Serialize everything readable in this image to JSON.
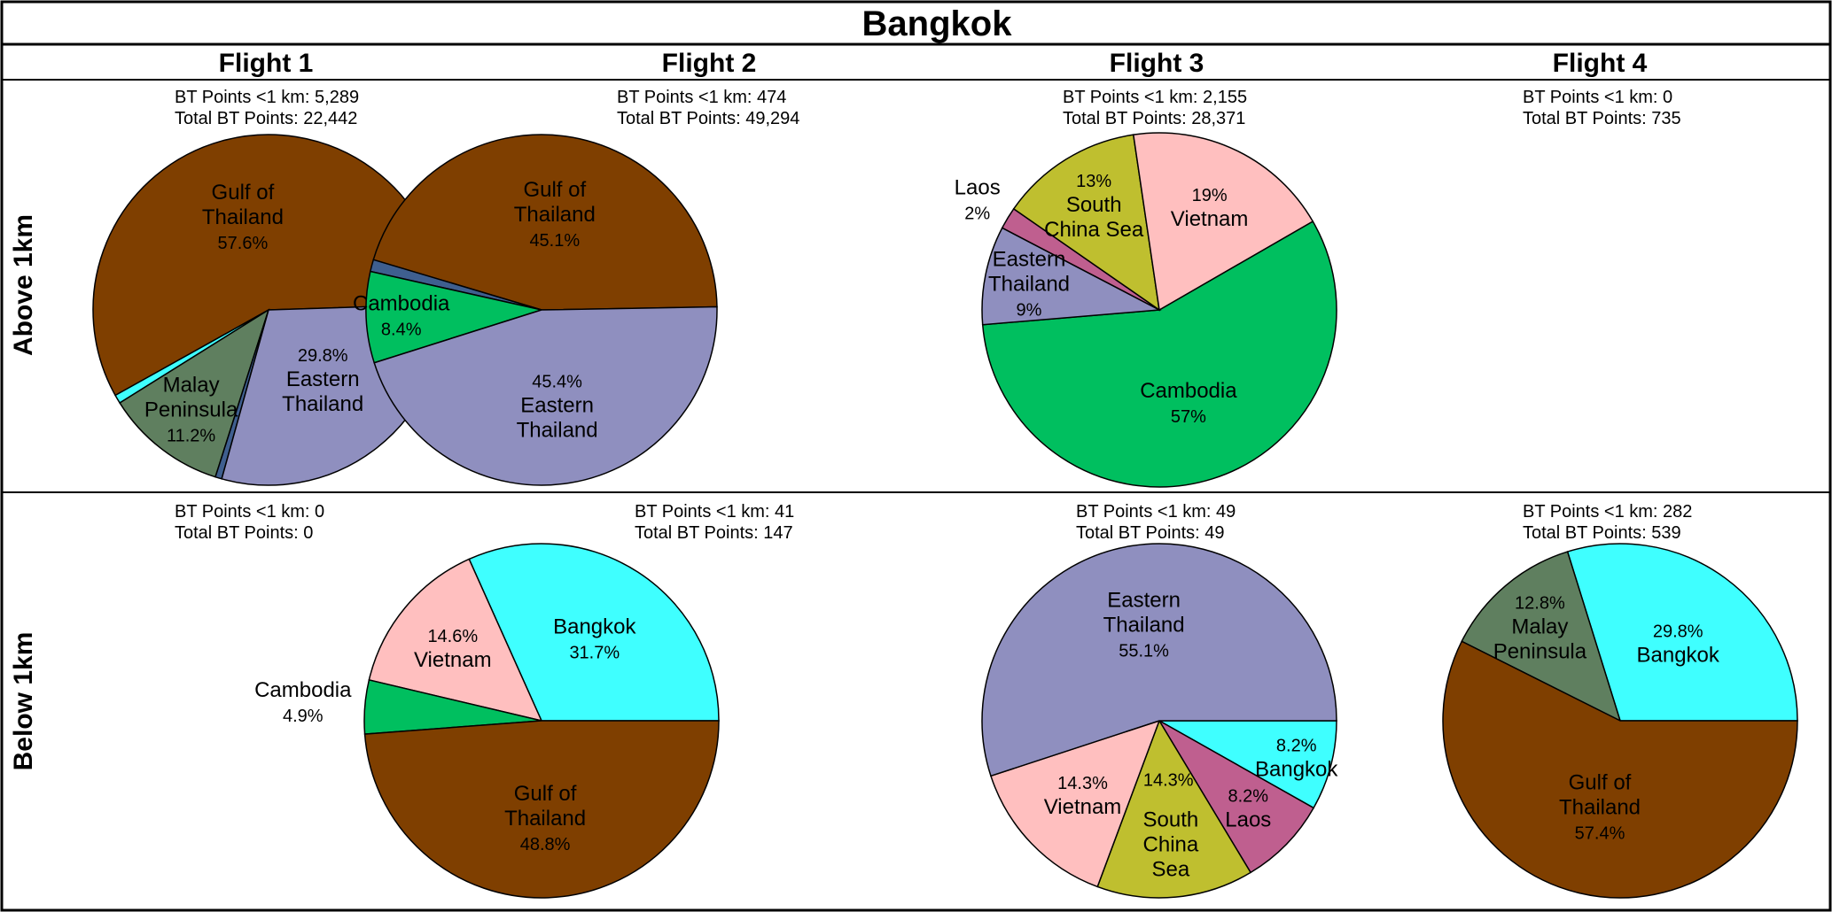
{
  "title": "Bangkok",
  "columns": [
    "Flight 1",
    "Flight 2",
    "Flight 3",
    "Flight 4"
  ],
  "rows": [
    "Above 1km",
    "Below 1km"
  ],
  "stat_labels": {
    "near": "BT Points <1 km: ",
    "total": "Total BT Points: "
  },
  "colors": {
    "Gulf of Thailand": "#7f3f00",
    "Eastern Thailand": "#8f8fbf",
    "Cambodia": "#00bf5f",
    "Vietnam": "#ffbfbf",
    "South China Sea": "#bfbf2f",
    "Laos": "#bf5f8f",
    "Bangkok": "#3fffff",
    "Malay Peninsula": "#5f7f5f",
    "Other": "#3f5f8f"
  },
  "chart_data": [
    {
      "type": "pie",
      "flight": "Flight 1",
      "altitude": "Above 1km",
      "near_points": "5,289",
      "total_points": "22,442",
      "slices": [
        {
          "name": "Gulf of Thailand",
          "label_lines": [
            "Gulf of",
            "Thailand"
          ],
          "value": 57.6,
          "pct": "57.6%"
        },
        {
          "name": "Bangkok",
          "label_lines": [],
          "value": 0.8,
          "pct": ""
        },
        {
          "name": "Malay Peninsula",
          "label_lines": [
            "Malay",
            "Peninsula"
          ],
          "value": 11.2,
          "pct": "11.2%"
        },
        {
          "name": "Other",
          "label_lines": [],
          "value": 0.6,
          "pct": ""
        },
        {
          "name": "Eastern Thailand",
          "label_lines": [
            "Eastern",
            "Thailand"
          ],
          "value": 29.8,
          "pct": "29.8%"
        }
      ]
    },
    {
      "type": "pie",
      "flight": "Flight 2",
      "altitude": "Above 1km",
      "near_points": "474",
      "total_points": "49,294",
      "slices": [
        {
          "name": "Gulf of Thailand",
          "label_lines": [
            "Gulf of",
            "Thailand"
          ],
          "value": 45.1,
          "pct": "45.1%"
        },
        {
          "name": "Other",
          "label_lines": [],
          "value": 1.1,
          "pct": ""
        },
        {
          "name": "Cambodia",
          "label_lines": [
            "Cambodia"
          ],
          "value": 8.4,
          "pct": "8.4%"
        },
        {
          "name": "Eastern Thailand",
          "label_lines": [
            "Eastern",
            "Thailand"
          ],
          "value": 45.4,
          "pct": "45.4%"
        }
      ]
    },
    {
      "type": "pie",
      "flight": "Flight 3",
      "altitude": "Above 1km",
      "near_points": "2,155",
      "total_points": "28,371",
      "slices": [
        {
          "name": "Cambodia",
          "label_lines": [
            "Cambodia"
          ],
          "value": 57,
          "pct": "57%"
        },
        {
          "name": "Eastern Thailand",
          "label_lines": [
            "Eastern",
            "Thailand"
          ],
          "value": 9,
          "pct": "9%"
        },
        {
          "name": "Laos",
          "label_lines": [
            "Laos"
          ],
          "value": 2,
          "pct": "2%"
        },
        {
          "name": "South China Sea",
          "label_lines": [
            "South",
            "China Sea"
          ],
          "value": 13,
          "pct": "13%"
        },
        {
          "name": "Vietnam",
          "label_lines": [
            "Vietnam"
          ],
          "value": 19,
          "pct": "19%"
        }
      ]
    },
    {
      "type": "pie",
      "flight": "Flight 4",
      "altitude": "Above 1km",
      "near_points": "0",
      "total_points": "735",
      "slices": []
    },
    {
      "type": "pie",
      "flight": "Flight 1",
      "altitude": "Below 1km",
      "near_points": "0",
      "total_points": "0",
      "slices": []
    },
    {
      "type": "pie",
      "flight": "Flight 2",
      "altitude": "Below 1km",
      "near_points": "41",
      "total_points": "147",
      "slices": [
        {
          "name": "Bangkok",
          "label_lines": [
            "Bangkok"
          ],
          "value": 31.7,
          "pct": "31.7%"
        },
        {
          "name": "Vietnam",
          "label_lines": [
            "Vietnam"
          ],
          "value": 14.6,
          "pct": "14.6%"
        },
        {
          "name": "Cambodia",
          "label_lines": [
            "Cambodia"
          ],
          "value": 4.9,
          "pct": "4.9%"
        },
        {
          "name": "Gulf of Thailand",
          "label_lines": [
            "Gulf of",
            "Thailand"
          ],
          "value": 48.8,
          "pct": "48.8%"
        }
      ]
    },
    {
      "type": "pie",
      "flight": "Flight 3",
      "altitude": "Below 1km",
      "near_points": "49",
      "total_points": "49",
      "slices": [
        {
          "name": "Bangkok",
          "label_lines": [
            "Bangkok"
          ],
          "value": 8.2,
          "pct": "8.2%"
        },
        {
          "name": "Laos",
          "label_lines": [
            "Laos"
          ],
          "value": 8.2,
          "pct": "8.2%"
        },
        {
          "name": "South China Sea",
          "label_lines": [
            "South",
            "China",
            "Sea"
          ],
          "value": 14.3,
          "pct": ""
        },
        {
          "name": "Vietnam",
          "label_lines": [
            "Vietnam"
          ],
          "value": 14.3,
          "pct": "14.3%"
        },
        {
          "name": "Eastern Thailand",
          "label_lines": [
            "Eastern",
            "Thailand"
          ],
          "value": 55.1,
          "pct": "55.1%"
        }
      ],
      "annotations": [
        "14.3%"
      ]
    },
    {
      "type": "pie",
      "flight": "Flight 4",
      "altitude": "Below 1km",
      "near_points": "282",
      "total_points": "539",
      "slices": [
        {
          "name": "Bangkok",
          "label_lines": [
            "Bangkok"
          ],
          "value": 29.8,
          "pct": "29.8%"
        },
        {
          "name": "Malay Peninsula",
          "label_lines": [
            "Malay",
            "Peninsula"
          ],
          "value": 12.8,
          "pct": "12.8%"
        },
        {
          "name": "Gulf of Thailand",
          "label_lines": [
            "Gulf of",
            "Thailand"
          ],
          "value": 57.4,
          "pct": "57.4%"
        }
      ]
    }
  ]
}
